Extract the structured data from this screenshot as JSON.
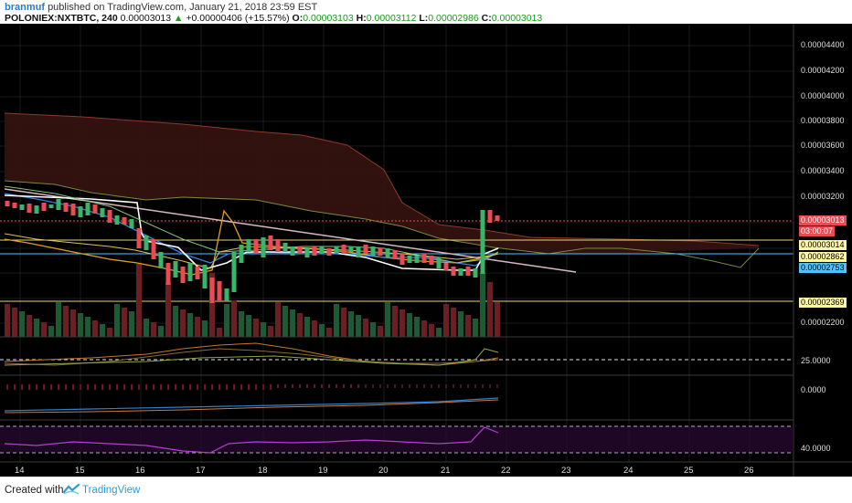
{
  "header": {
    "author": "branmuf",
    "published_text": "published on TradingView.com, January 21, 2018 23:59 EST",
    "symbol": "POLONIEX:NXTBTC, 240",
    "last": "0.00003013",
    "change": "+0.00000406 (+15.57%)",
    "o_label": "O:",
    "o": "0.00003103",
    "h_label": "H:",
    "h": "0.00003112",
    "l_label": "L:",
    "l": "0.00002986",
    "c_label": "C:",
    "c": "0.00003013"
  },
  "price_axis": {
    "ticks": [
      "0.00004400",
      "0.00004200",
      "0.00004000",
      "0.00003800",
      "0.00003600",
      "0.00003400",
      "0.00003200",
      "0.00002200"
    ],
    "tags": [
      {
        "text": "0.00003013",
        "bg": "#e84b50",
        "fg": "#ffffff"
      },
      {
        "text": "03:00:07",
        "bg": "#e84b50",
        "fg": "#ffffff"
      },
      {
        "text": "0.00003014",
        "bg": "#fff6a3",
        "fg": "#000000"
      },
      {
        "text": "0.00002862",
        "bg": "#fff6a3",
        "fg": "#000000"
      },
      {
        "text": "0.00002753",
        "bg": "#4fc3ff",
        "fg": "#000000"
      },
      {
        "text": "0.00002369",
        "bg": "#fff6a3",
        "fg": "#000000"
      }
    ]
  },
  "panes": {
    "pane1_value": "25.0000",
    "pane2_value": "0.0000",
    "pane3_value": "40.0000"
  },
  "time_axis": {
    "labels": [
      "14",
      "15",
      "16",
      "17",
      "18",
      "19",
      "20",
      "21",
      "22",
      "23",
      "24",
      "25",
      "26"
    ]
  },
  "footer": {
    "created_with": "Created with",
    "brand": "TradingView"
  },
  "colors": {
    "up": "#3bb36b",
    "down": "#e84b50",
    "background": "#000000",
    "brand": "#2a9fd6"
  }
}
